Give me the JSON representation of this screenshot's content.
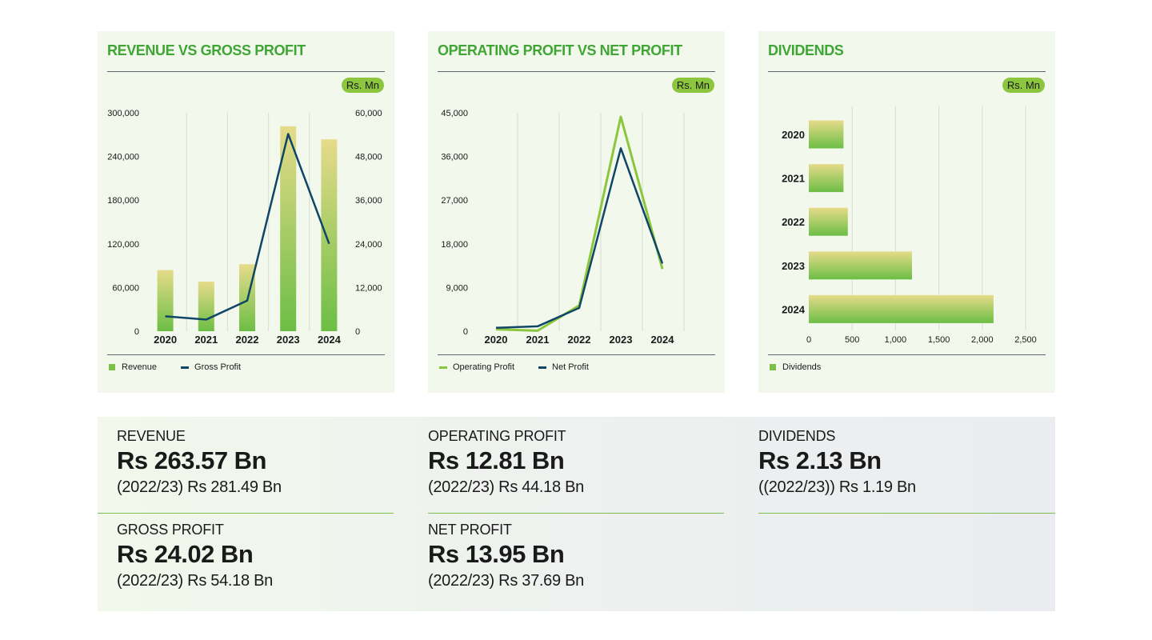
{
  "colors": {
    "accent_green": "#3fa535",
    "light_green": "#8cc63f",
    "navy": "#0f4566",
    "panel_bg": "#f3f8ec"
  },
  "chart_data": [
    {
      "type": "bar",
      "title": "REVENUE VS GROSS PROFIT",
      "unit_badge": "Rs. Mn",
      "categories": [
        "2020",
        "2021",
        "2022",
        "2023",
        "2024"
      ],
      "series": [
        {
          "name": "Revenue",
          "type": "bar",
          "axis": "left",
          "values": [
            84000,
            68000,
            92000,
            281490,
            263570
          ]
        },
        {
          "name": "Gross Profit",
          "type": "line",
          "axis": "right",
          "values": [
            4100,
            3200,
            8400,
            54180,
            24020
          ]
        }
      ],
      "ylim_left": [
        0,
        300000
      ],
      "ylim_right": [
        0,
        60000
      ],
      "yticks_left": [
        "0",
        "60,000",
        "120,000",
        "180,000",
        "240,000",
        "300,000"
      ],
      "yticks_right": [
        "0",
        "12,000",
        "24,000",
        "36,000",
        "48,000",
        "60,000"
      ],
      "grid": "vertical",
      "legend": "bottom-left"
    },
    {
      "type": "line",
      "title": "OPERATING PROFIT VS NET PROFIT",
      "unit_badge": "Rs. Mn",
      "categories": [
        "2020",
        "2021",
        "2022",
        "2023",
        "2024"
      ],
      "series": [
        {
          "name": "Operating Profit",
          "values": [
            400,
            100,
            5300,
            44180,
            12810
          ]
        },
        {
          "name": "Net Profit",
          "values": [
            700,
            1000,
            4800,
            37690,
            13950
          ]
        }
      ],
      "ylim": [
        0,
        45000
      ],
      "yticks": [
        "0",
        "9,000",
        "18,000",
        "27,000",
        "36,000",
        "45,000"
      ],
      "grid": "vertical",
      "legend": "bottom-left"
    },
    {
      "type": "bar",
      "orientation": "horizontal",
      "title": "DIVIDENDS",
      "unit_badge": "Rs. Mn",
      "categories": [
        "2020",
        "2021",
        "2022",
        "2023",
        "2024"
      ],
      "series": [
        {
          "name": "Dividends",
          "values": [
            400,
            400,
            450,
            1190,
            2130
          ]
        }
      ],
      "xlim": [
        0,
        2500
      ],
      "xticks": [
        "0",
        "500",
        "1,000",
        "1,500",
        "2,000",
        "2,500"
      ],
      "grid": "vertical",
      "legend": "bottom-left"
    }
  ],
  "summary": {
    "revenue": {
      "label": "REVENUE",
      "value": "Rs 263.57 Bn",
      "prev": "(2022/23) Rs 281.49 Bn"
    },
    "gross_profit": {
      "label": "GROSS PROFIT",
      "value": "Rs 24.02 Bn",
      "prev": "(2022/23) Rs 54.18 Bn"
    },
    "operating_profit": {
      "label": "OPERATING PROFIT",
      "value": "Rs 12.81 Bn",
      "prev": "(2022/23) Rs 44.18 Bn"
    },
    "net_profit": {
      "label": "NET PROFIT",
      "value": "Rs 13.95 Bn",
      "prev": "(2022/23) Rs 37.69 Bn"
    },
    "dividends": {
      "label": "DIVIDENDS",
      "value": "Rs 2.13 Bn",
      "prev": "((2022/23)) Rs 1.19 Bn"
    }
  }
}
